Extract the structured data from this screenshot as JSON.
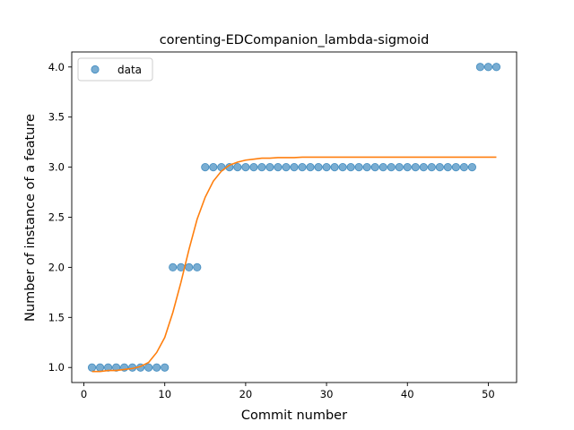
{
  "chart_data": {
    "type": "scatter",
    "title": "corenting-EDCompanion_lambda-sigmoid",
    "xlabel": "Commit number",
    "ylabel": "Number of instance of a feature",
    "xlim": [
      -1.5,
      53.5
    ],
    "ylim": [
      0.85,
      4.15
    ],
    "xticks": [
      0,
      10,
      20,
      30,
      40,
      50
    ],
    "xtick_labels": [
      "0",
      "10",
      "20",
      "30",
      "40",
      "50"
    ],
    "yticks": [
      1.0,
      1.5,
      2.0,
      2.5,
      3.0,
      3.5,
      4.0
    ],
    "ytick_labels": [
      "1.0",
      "1.5",
      "2.0",
      "2.5",
      "3.0",
      "3.5",
      "4.0"
    ],
    "grid": false,
    "legend": {
      "position": "top-left",
      "entries": [
        {
          "label": "data",
          "color": "#1f77b4",
          "marker": "circle"
        }
      ]
    },
    "series": [
      {
        "name": "data",
        "kind": "scatter",
        "color": "#1f77b4",
        "x": [
          1,
          2,
          3,
          4,
          5,
          6,
          7,
          8,
          9,
          10,
          11,
          12,
          13,
          14,
          15,
          16,
          17,
          18,
          19,
          20,
          21,
          22,
          23,
          24,
          25,
          26,
          27,
          28,
          29,
          30,
          31,
          32,
          33,
          34,
          35,
          36,
          37,
          38,
          39,
          40,
          41,
          42,
          43,
          44,
          45,
          46,
          47,
          48,
          49,
          50,
          51
        ],
        "y": [
          1,
          1,
          1,
          1,
          1,
          1,
          1,
          1,
          1,
          1,
          2,
          2,
          2,
          2,
          3,
          3,
          3,
          3,
          3,
          3,
          3,
          3,
          3,
          3,
          3,
          3,
          3,
          3,
          3,
          3,
          3,
          3,
          3,
          3,
          3,
          3,
          3,
          3,
          3,
          3,
          3,
          3,
          3,
          3,
          3,
          3,
          3,
          3,
          4,
          4,
          4
        ]
      },
      {
        "kind": "line",
        "color": "#ff7f0e",
        "x": [
          1,
          2,
          3,
          4,
          5,
          6,
          7,
          8,
          9,
          10,
          11,
          12,
          13,
          14,
          15,
          16,
          17,
          18,
          19,
          20,
          21,
          22,
          23,
          24,
          25,
          26,
          27,
          28,
          29,
          30,
          31,
          32,
          33,
          34,
          35,
          36,
          37,
          38,
          39,
          40,
          41,
          42,
          43,
          44,
          45,
          46,
          47,
          48,
          49,
          50,
          51
        ],
        "y": [
          0.96,
          0.96,
          0.97,
          0.97,
          0.98,
          0.99,
          1.01,
          1.05,
          1.15,
          1.3,
          1.55,
          1.85,
          2.18,
          2.48,
          2.7,
          2.86,
          2.96,
          3.02,
          3.05,
          3.07,
          3.08,
          3.09,
          3.09,
          3.095,
          3.095,
          3.095,
          3.1,
          3.1,
          3.1,
          3.1,
          3.1,
          3.1,
          3.1,
          3.1,
          3.1,
          3.1,
          3.1,
          3.1,
          3.1,
          3.1,
          3.1,
          3.1,
          3.1,
          3.1,
          3.1,
          3.1,
          3.1,
          3.1,
          3.1,
          3.1,
          3.1
        ]
      }
    ]
  }
}
